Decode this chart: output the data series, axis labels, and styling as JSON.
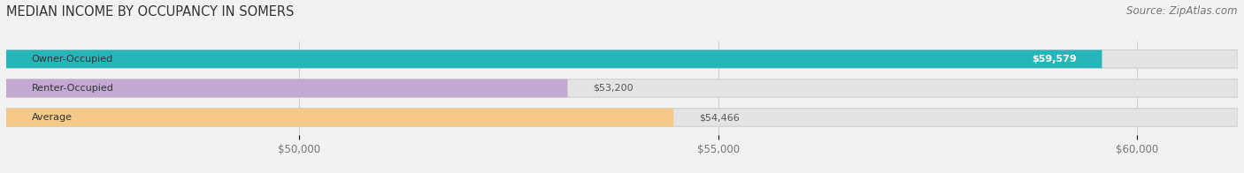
{
  "title": "MEDIAN INCOME BY OCCUPANCY IN SOMERS",
  "source": "Source: ZipAtlas.com",
  "categories": [
    "Owner-Occupied",
    "Renter-Occupied",
    "Average"
  ],
  "values": [
    59579,
    53200,
    54466
  ],
  "bar_colors": [
    "#26b5b8",
    "#c3a8d1",
    "#f5c98a"
  ],
  "value_label_colors": [
    "#ffffff",
    "#555555",
    "#555555"
  ],
  "bar_labels": [
    "$59,579",
    "$53,200",
    "$54,466"
  ],
  "xlim": [
    46500,
    61200
  ],
  "xticks": [
    50000,
    55000,
    60000
  ],
  "xtick_labels": [
    "$50,000",
    "$55,000",
    "$60,000"
  ],
  "background_color": "#f2f2f2",
  "bar_bg_color": "#e4e4e4",
  "title_fontsize": 10.5,
  "source_fontsize": 8.5,
  "label_fontsize": 8.0,
  "value_fontsize": 8.0,
  "tick_fontsize": 8.5
}
